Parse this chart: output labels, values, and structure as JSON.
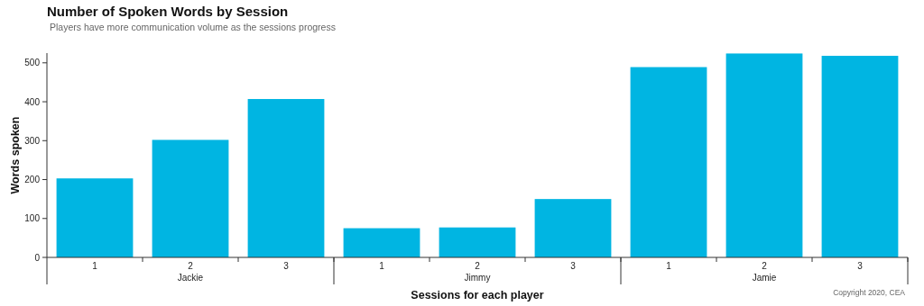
{
  "chart_data": {
    "type": "bar",
    "title": "Number of Spoken Words by Session",
    "subtitle": "Players have more communication volume as the sessions progress",
    "xlabel": "Sessions for each player",
    "ylabel": "Words spoken",
    "categories": [
      "1",
      "2",
      "3",
      "1",
      "2",
      "3",
      "1",
      "2",
      "3"
    ],
    "values": [
      203,
      302,
      407,
      75,
      77,
      150,
      489,
      524,
      518
    ],
    "color": "#00b5e2",
    "ylim": [
      0,
      525
    ],
    "yticks": [
      0,
      100,
      200,
      300,
      400,
      500
    ],
    "grid": false,
    "annotations": [
      "Jackie",
      "Jimmy",
      "Jamie",
      "Copyright 2020, CEA"
    ]
  }
}
